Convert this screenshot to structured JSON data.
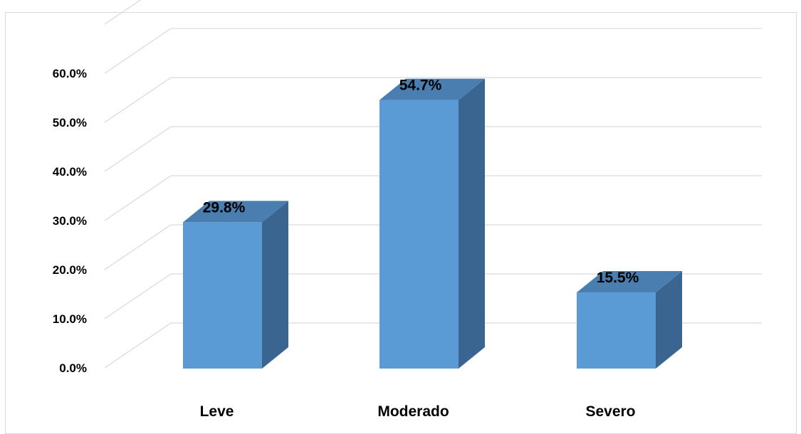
{
  "chart_data": {
    "type": "bar",
    "style": "3d-column",
    "categories": [
      "Leve",
      "Moderado",
      "Severo"
    ],
    "values": [
      29.8,
      54.7,
      15.5
    ],
    "data_labels": [
      "29.8%",
      "54.7%",
      "15.5%"
    ],
    "y_ticks": [
      "0.0%",
      "10.0%",
      "20.0%",
      "30.0%",
      "40.0%",
      "50.0%",
      "60.0%"
    ],
    "ylim": [
      0,
      70
    ],
    "grid": true,
    "colors": {
      "front": "#5b9bd5",
      "side": "#3a6590",
      "top": "#4a7eb0",
      "grid": "#d9d9d9",
      "frame": "#d9d9d9"
    }
  }
}
